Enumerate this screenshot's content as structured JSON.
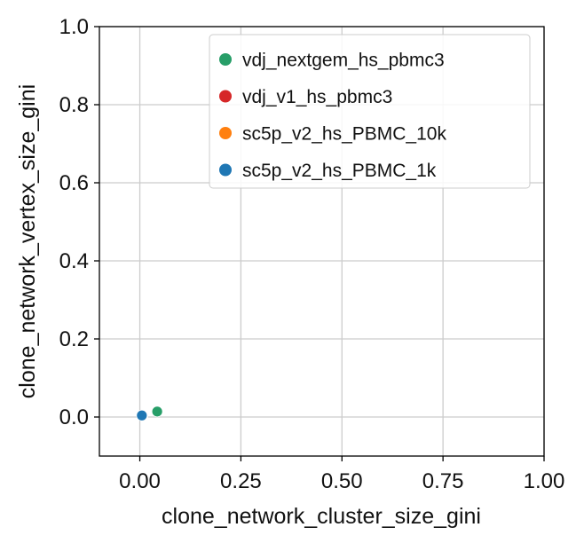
{
  "chart_data": {
    "type": "scatter",
    "xlabel": "clone_network_cluster_size_gini",
    "ylabel": "clone_network_vertex_size_gini",
    "xlim": [
      -0.1,
      1.0
    ],
    "ylim": [
      -0.1,
      1.0
    ],
    "x_ticks": [
      0.0,
      0.25,
      0.5,
      0.75,
      1.0
    ],
    "x_tick_labels": [
      "0.00",
      "0.25",
      "0.50",
      "0.75",
      "1.00"
    ],
    "y_ticks": [
      0.0,
      0.2,
      0.4,
      0.6,
      0.8,
      1.0
    ],
    "y_tick_labels": [
      "0.0",
      "0.2",
      "0.4",
      "0.6",
      "0.8",
      "1.0"
    ],
    "grid": true,
    "legend_position": "top-right",
    "series": [
      {
        "name": "vdj_nextgem_hs_pbmc3",
        "color": "#279e68",
        "points": [
          {
            "x": 0.043,
            "y": 0.014
          }
        ]
      },
      {
        "name": "vdj_v1_hs_pbmc3",
        "color": "#d62728",
        "points": [
          {
            "x": 0.007,
            "y": 0.004
          }
        ]
      },
      {
        "name": "sc5p_v2_hs_PBMC_10k",
        "color": "#ff7f0e",
        "points": [
          {
            "x": 0.006,
            "y": 0.004
          }
        ]
      },
      {
        "name": "sc5p_v2_hs_PBMC_1k",
        "color": "#1f77b4",
        "points": [
          {
            "x": 0.005,
            "y": 0.004
          }
        ]
      }
    ]
  }
}
